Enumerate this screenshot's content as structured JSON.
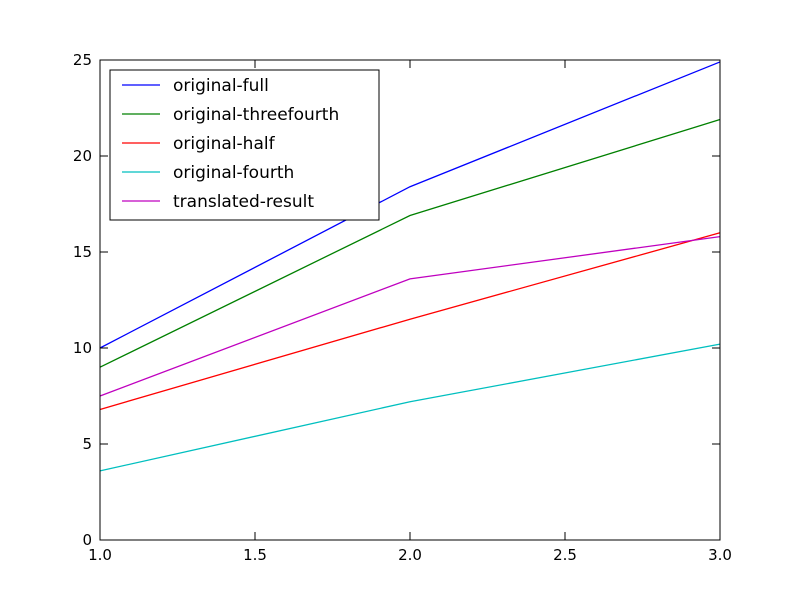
{
  "chart_data": {
    "type": "line",
    "title": "",
    "xlabel": "",
    "ylabel": "",
    "xlim": [
      1.0,
      3.0
    ],
    "ylim": [
      0,
      25
    ],
    "x_ticks": [
      "1.0",
      "1.5",
      "2.0",
      "2.5",
      "3.0"
    ],
    "y_ticks": [
      "0",
      "5",
      "10",
      "15",
      "20",
      "25"
    ],
    "grid": false,
    "legend_position": "top-left",
    "x": [
      1.0,
      2.0,
      3.0
    ],
    "series": [
      {
        "name": "original-full",
        "color": "#0000ff",
        "values": [
          10.0,
          18.4,
          24.9
        ]
      },
      {
        "name": "original-threefourth",
        "color": "#008000",
        "values": [
          9.0,
          16.9,
          21.9
        ]
      },
      {
        "name": "original-half",
        "color": "#ff0000",
        "values": [
          6.8,
          11.5,
          16.0
        ]
      },
      {
        "name": "original-fourth",
        "color": "#00bfbf",
        "values": [
          3.6,
          7.2,
          10.2
        ]
      },
      {
        "name": "translated-result",
        "color": "#bf00bf",
        "values": [
          7.5,
          13.6,
          15.8
        ]
      }
    ]
  }
}
